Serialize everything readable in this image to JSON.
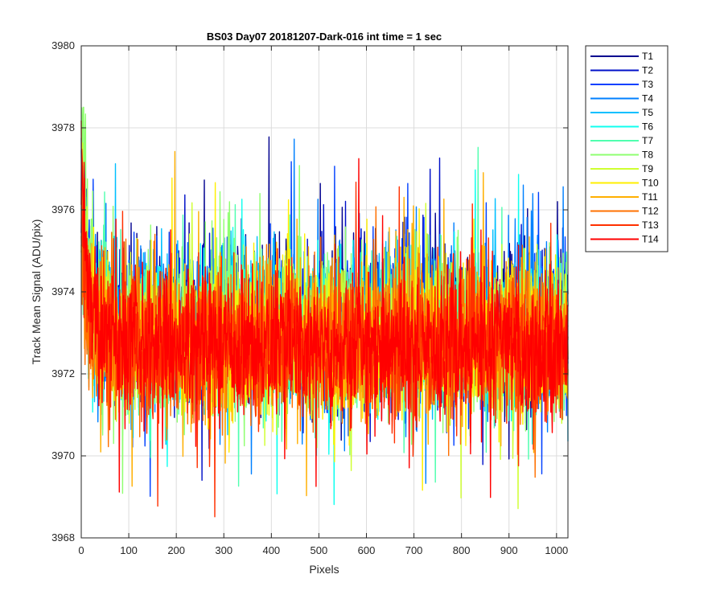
{
  "chart_data": {
    "type": "line",
    "title": "BS03 Day07 20181207-Dark-016 int time = 1 sec",
    "xlabel": "Pixels",
    "ylabel": "Track Mean Signal (ADU/pix)",
    "xlim": [
      0,
      1024
    ],
    "ylim": [
      3968,
      3980
    ],
    "xticks": [
      0,
      100,
      200,
      300,
      400,
      500,
      600,
      700,
      800,
      900,
      1000
    ],
    "yticks": [
      3968,
      3970,
      3972,
      3974,
      3976,
      3978,
      3980
    ],
    "grid": true,
    "legend_position": "outside-top-right",
    "series": [
      {
        "name": "T1",
        "color": "#00008f",
        "mean": 3973.3,
        "spread": 0.9,
        "start": 3977.0
      },
      {
        "name": "T2",
        "color": "#0010c8",
        "mean": 3973.2,
        "spread": 0.9,
        "start": 3976.8
      },
      {
        "name": "T3",
        "color": "#0040ff",
        "mean": 3973.2,
        "spread": 0.9,
        "start": 3977.5
      },
      {
        "name": "T4",
        "color": "#0080ff",
        "mean": 3973.1,
        "spread": 0.9,
        "start": 3976.5
      },
      {
        "name": "T5",
        "color": "#00bfff",
        "mean": 3973.0,
        "spread": 0.9,
        "start": 3976.0
      },
      {
        "name": "T6",
        "color": "#10ffef",
        "mean": 3973.0,
        "spread": 0.9,
        "start": 3975.5
      },
      {
        "name": "T7",
        "color": "#50ffaf",
        "mean": 3972.9,
        "spread": 0.9,
        "start": 3976.0
      },
      {
        "name": "T8",
        "color": "#8fff70",
        "mean": 3972.9,
        "spread": 0.95,
        "start": 3978.5
      },
      {
        "name": "T9",
        "color": "#cfff30",
        "mean": 3972.9,
        "spread": 0.9,
        "start": 3976.0
      },
      {
        "name": "T10",
        "color": "#ffef00",
        "mean": 3972.8,
        "spread": 0.9,
        "start": 3975.5
      },
      {
        "name": "T11",
        "color": "#ffaf00",
        "mean": 3972.8,
        "spread": 0.9,
        "start": 3975.0
      },
      {
        "name": "T12",
        "color": "#ff7000",
        "mean": 3972.8,
        "spread": 0.95,
        "start": 3975.5
      },
      {
        "name": "T13",
        "color": "#ff3000",
        "mean": 3972.7,
        "spread": 0.9,
        "start": 3976.0
      },
      {
        "name": "T14",
        "color": "#ff0000",
        "mean": 3972.7,
        "spread": 0.85,
        "start": 3977.5
      }
    ]
  }
}
